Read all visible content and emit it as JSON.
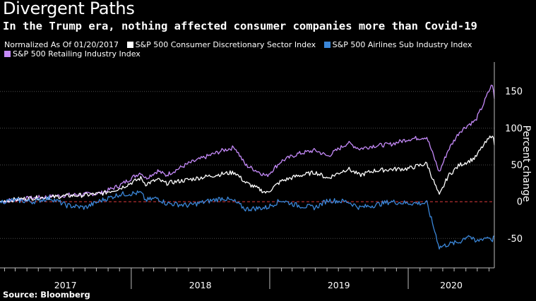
{
  "title": "Divergent Paths",
  "subtitle": "In the Trump era, nothing affected consumer companies more than Covid-19",
  "note": "Normalized As Of 01/20/2017",
  "source": "Source: Bloomberg",
  "colors": {
    "retailing": "#c58af9",
    "discretionary": "#ffffff",
    "airlines": "#3a86d8",
    "zero_line": "#e0393e",
    "grid": "#4d4d4d"
  },
  "chart_data": {
    "type": "line",
    "ylabel": "Percent change",
    "ylim": [
      -90,
      190
    ],
    "yticks": [
      -50,
      0,
      50,
      100,
      150
    ],
    "xlim": [
      "2017-01-20",
      "2020-08-15"
    ],
    "year_labels": [
      {
        "label": "2017",
        "from": "2017-01-20",
        "to": "2017-12-31"
      },
      {
        "label": "2018",
        "from": "2018-01-01",
        "to": "2018-12-31"
      },
      {
        "label": "2019",
        "from": "2019-01-01",
        "to": "2019-12-31"
      },
      {
        "label": "2020",
        "from": "2020-01-01",
        "to": "2020-08-15"
      }
    ],
    "grid": true,
    "legend_position": "top-left",
    "x": [
      "2017-01-20",
      "2017-03-01",
      "2017-04-15",
      "2017-06-01",
      "2017-07-15",
      "2017-09-01",
      "2017-10-15",
      "2017-12-01",
      "2018-01-26",
      "2018-02-08",
      "2018-03-12",
      "2018-04-02",
      "2018-06-01",
      "2018-08-31",
      "2018-10-01",
      "2018-10-29",
      "2018-12-24",
      "2019-01-31",
      "2019-03-15",
      "2019-05-01",
      "2019-06-03",
      "2019-07-26",
      "2019-08-26",
      "2019-10-01",
      "2019-11-15",
      "2019-12-31",
      "2020-02-19",
      "2020-03-23",
      "2020-04-15",
      "2020-05-15",
      "2020-06-08",
      "2020-06-26",
      "2020-07-15",
      "2020-07-31",
      "2020-08-10",
      "2020-08-15"
    ],
    "series": [
      {
        "name": "S&P 500 Retailing Industry Index",
        "color_key": "retailing",
        "values": [
          0,
          3,
          5,
          7,
          9,
          10,
          12,
          22,
          40,
          32,
          42,
          36,
          52,
          70,
          74,
          50,
          35,
          55,
          65,
          70,
          62,
          80,
          72,
          76,
          78,
          85,
          88,
          40,
          70,
          95,
          105,
          110,
          130,
          150,
          160,
          140
        ]
      },
      {
        "name": "S&P 500 Consumer Discretionary Sector Index",
        "color_key": "discretionary",
        "values": [
          0,
          3,
          5,
          6,
          8,
          9,
          11,
          18,
          32,
          24,
          30,
          25,
          30,
          38,
          40,
          26,
          12,
          28,
          35,
          40,
          32,
          45,
          36,
          42,
          44,
          45,
          52,
          8,
          35,
          50,
          55,
          60,
          75,
          85,
          92,
          77
        ]
      },
      {
        "name": "S&P 500 Airlines Sub Industry Index",
        "color_key": "airlines",
        "values": [
          0,
          2,
          0,
          5,
          -5,
          -8,
          2,
          10,
          12,
          2,
          5,
          -2,
          -5,
          5,
          0,
          -10,
          -8,
          2,
          -5,
          -8,
          2,
          0,
          -8,
          -5,
          0,
          -2,
          -2,
          -62,
          -58,
          -55,
          -45,
          -55,
          -50,
          -48,
          -52,
          -47
        ]
      }
    ]
  }
}
